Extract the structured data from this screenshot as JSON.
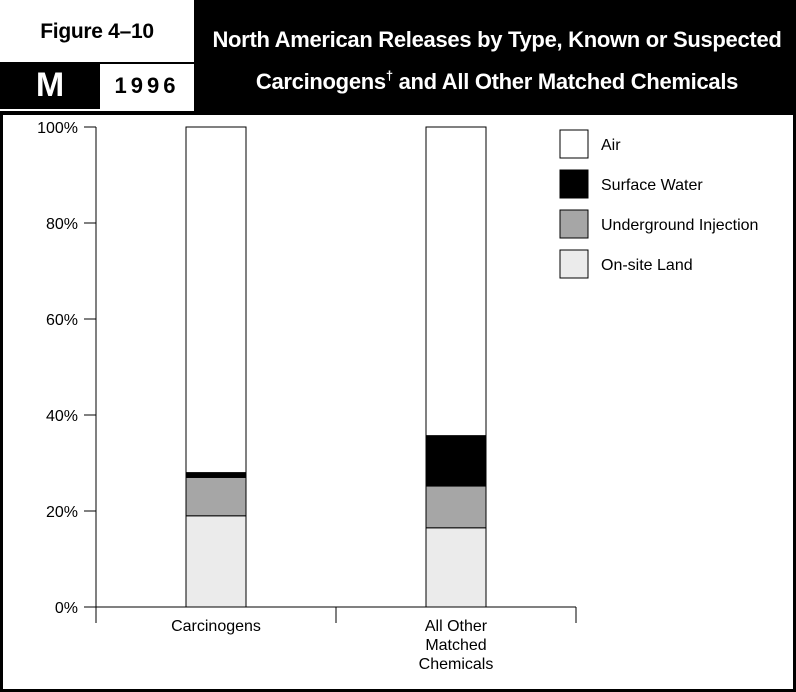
{
  "header": {
    "figure_label": "Figure 4–10",
    "region_letter": "M",
    "year": "1996",
    "title_line1": "North American Releases by Type, Known or Suspected",
    "title_line2": "Carcinogens",
    "title_dagger": "†",
    "title_line2_rest": " and All Other Matched Chemicals"
  },
  "colors": {
    "air": "#ffffff",
    "surface_water": "#000000",
    "underground_injection": "#a6a6a6",
    "onsite_land": "#ebebeb",
    "frame": "#000000"
  },
  "chart_data": {
    "type": "bar",
    "stacked": true,
    "title": "North American Releases by Type, Known or Suspected Carcinogens† and All Other Matched Chemicals",
    "categories": [
      "Carcinogens",
      "All Other\nMatched\nChemicals"
    ],
    "series": [
      {
        "name": "On-site Land",
        "values": [
          19,
          16.5
        ]
      },
      {
        "name": "Underground Injection",
        "values": [
          8,
          8.7
        ]
      },
      {
        "name": "Surface Water",
        "values": [
          1,
          10.5
        ]
      },
      {
        "name": "Air",
        "values": [
          72,
          64.3
        ]
      }
    ],
    "yticks": [
      "0%",
      "20%",
      "40%",
      "60%",
      "80%",
      "100%"
    ],
    "ylim": [
      0,
      100
    ],
    "grid": false,
    "legend": {
      "position": "top-right",
      "entries": [
        "Air",
        "Surface Water",
        "Underground Injection",
        "On-site Land"
      ]
    }
  }
}
